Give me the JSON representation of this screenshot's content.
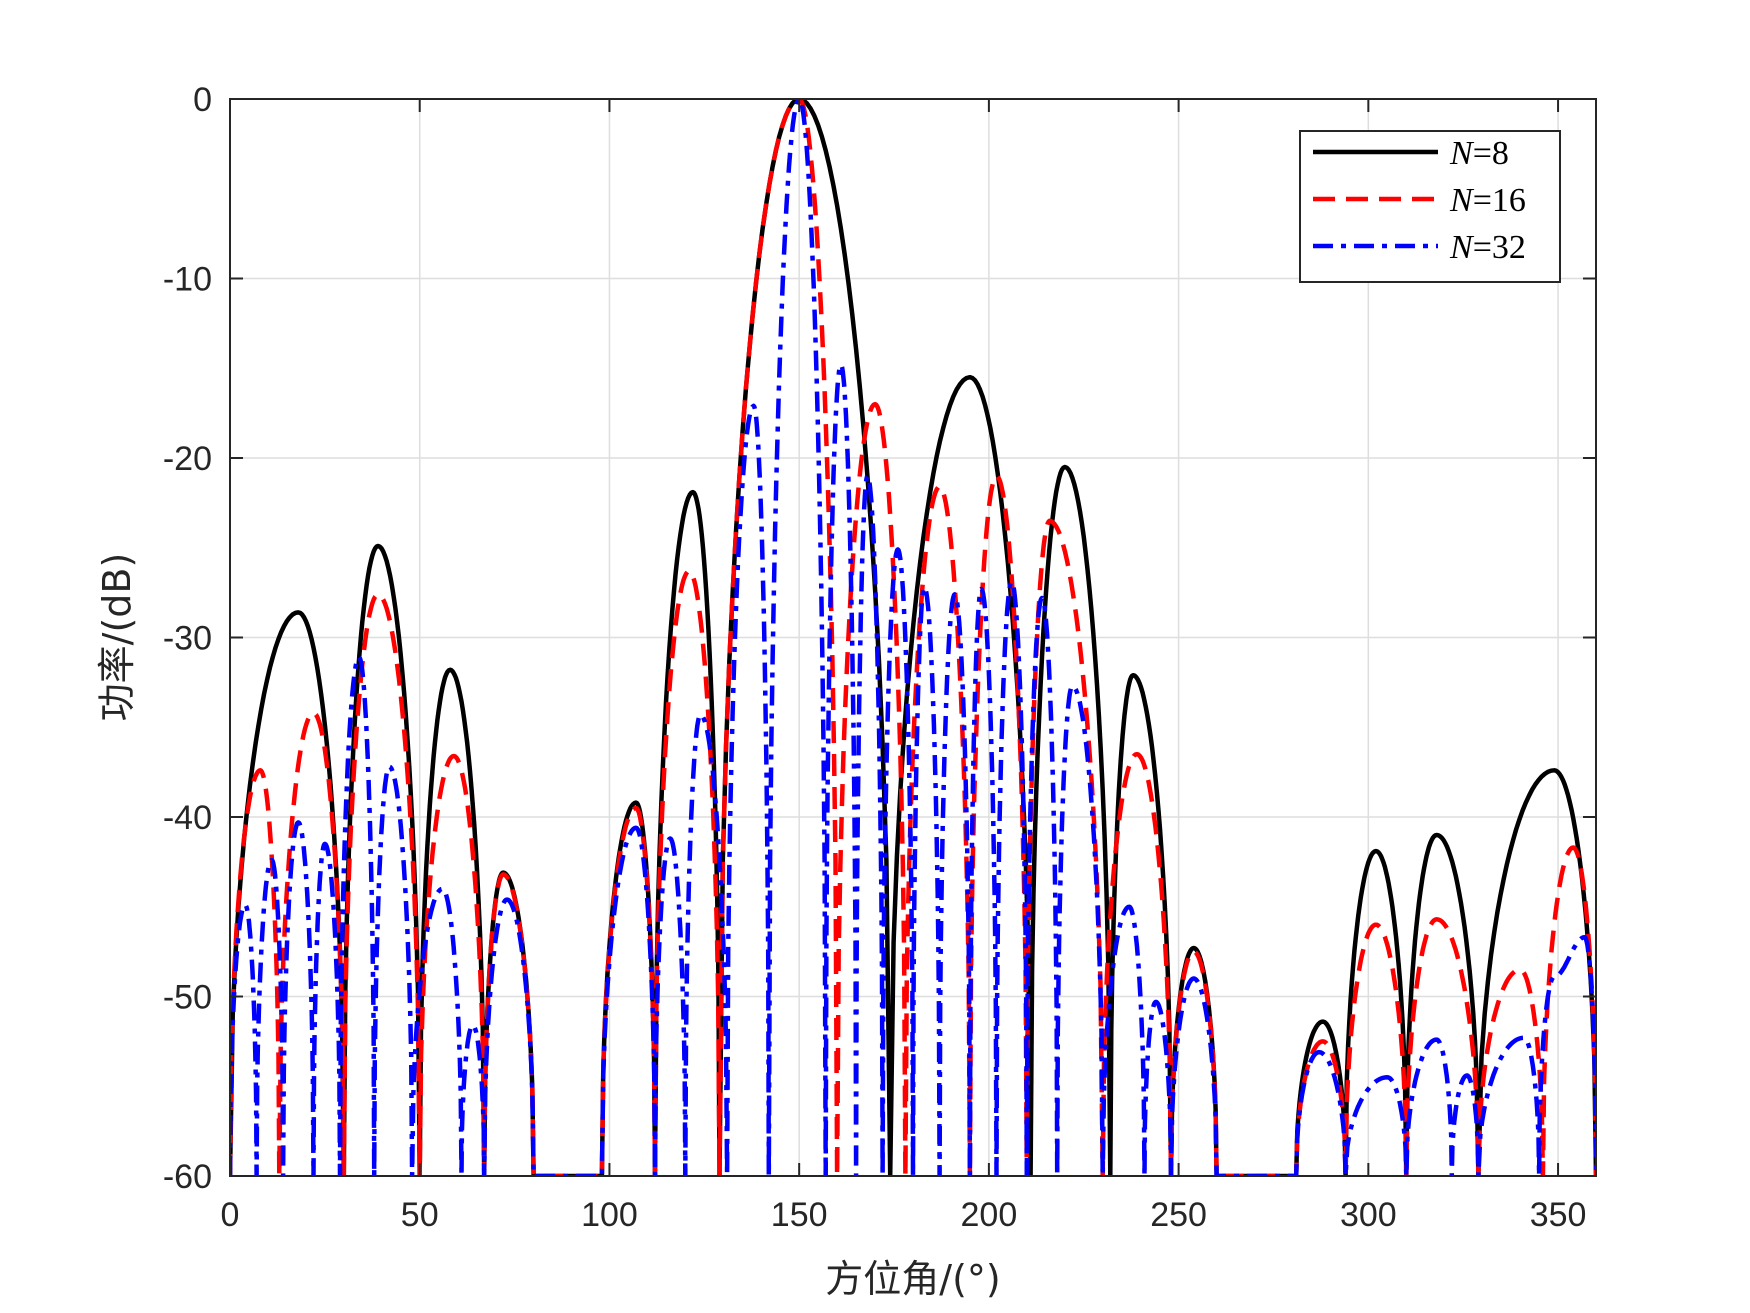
{
  "chart_data": {
    "type": "line",
    "xlabel": "方位角/(°)",
    "ylabel": "功率/(dB)",
    "xlim": [
      0,
      360
    ],
    "ylim": [
      -60,
      0
    ],
    "xticks": [
      "0",
      "50",
      "100",
      "150",
      "200",
      "250",
      "300",
      "350"
    ],
    "yticks": [
      "0",
      "-10",
      "-20",
      "-30",
      "-40",
      "-50",
      "-60"
    ],
    "grid": true,
    "legend_position": "top-right",
    "series": [
      {
        "name": "N=8",
        "name_var": "N",
        "name_eq": "=8",
        "color": "#000000",
        "style": "solid",
        "peaks": [
          [
            18,
            -28.6
          ],
          [
            39,
            -24.9
          ],
          [
            58,
            -31.8
          ],
          [
            72,
            -43.1
          ],
          [
            107,
            -39.2
          ],
          [
            122,
            -21.9
          ],
          [
            150,
            0
          ],
          [
            195,
            -15.5
          ],
          [
            220,
            -20.5
          ],
          [
            238,
            -32.1
          ],
          [
            254,
            -47.3
          ],
          [
            288,
            -51.4
          ],
          [
            302,
            -41.9
          ],
          [
            318,
            -41
          ],
          [
            349,
            -37.4
          ]
        ],
        "nulls": [
          [
            0,
            -60
          ],
          [
            30,
            -60
          ],
          [
            50,
            -60
          ],
          [
            67,
            -60
          ],
          [
            80,
            -60
          ],
          [
            98,
            -60
          ],
          [
            112,
            -60
          ],
          [
            129,
            -60
          ],
          [
            174,
            -60
          ],
          [
            211,
            -60
          ],
          [
            232,
            -60
          ],
          [
            248,
            -60
          ],
          [
            260,
            -60
          ],
          [
            281,
            -60
          ],
          [
            294,
            -60
          ],
          [
            310,
            -60
          ],
          [
            329,
            -60
          ],
          [
            360,
            -60
          ]
        ]
      },
      {
        "name": "N=16",
        "name_var": "N",
        "name_eq": "=16",
        "color": "#ff0000",
        "style": "dashed",
        "peaks": [
          [
            8,
            -37.4
          ],
          [
            22,
            -34.2
          ],
          [
            39,
            -27.6
          ],
          [
            59,
            -36.6
          ],
          [
            72,
            -43.2
          ],
          [
            107,
            -39.5
          ],
          [
            121,
            -26.3
          ],
          [
            150,
            0
          ],
          [
            170,
            -17
          ],
          [
            187,
            -21.6
          ],
          [
            202,
            -21
          ],
          [
            216,
            -23.5
          ],
          [
            239,
            -36.5
          ],
          [
            254,
            -47.5
          ],
          [
            288,
            -52.5
          ],
          [
            302,
            -46
          ],
          [
            318,
            -45.7
          ],
          [
            340,
            -48.5
          ],
          [
            354,
            -41.7
          ]
        ],
        "nulls": [
          [
            0,
            -60
          ],
          [
            13,
            -60
          ],
          [
            30,
            -60
          ],
          [
            50,
            -60
          ],
          [
            67,
            -60
          ],
          [
            80,
            -60
          ],
          [
            98,
            -60
          ],
          [
            112,
            -60
          ],
          [
            129,
            -60
          ],
          [
            160,
            -60
          ],
          [
            178,
            -60
          ],
          [
            195,
            -60
          ],
          [
            210,
            -60
          ],
          [
            230,
            -60
          ],
          [
            248,
            -60
          ],
          [
            260,
            -60
          ],
          [
            281,
            -60
          ],
          [
            294,
            -60
          ],
          [
            310,
            -60
          ],
          [
            329,
            -60
          ],
          [
            346,
            -60
          ],
          [
            360,
            -60
          ]
        ]
      },
      {
        "name": "N=32",
        "name_var": "N",
        "name_eq": "=32",
        "color": "#0000ff",
        "style": "dashdot",
        "peaks": [
          [
            4,
            -44.9
          ],
          [
            11,
            -42.4
          ],
          [
            18,
            -40.3
          ],
          [
            25,
            -41.5
          ],
          [
            34,
            -31.1
          ],
          [
            42,
            -37.2
          ],
          [
            56,
            -44
          ],
          [
            64,
            -51.6
          ],
          [
            73,
            -44.6
          ],
          [
            107,
            -40.6
          ],
          [
            116,
            -41.2
          ],
          [
            124,
            -34.3
          ],
          [
            138,
            -17.1
          ],
          [
            150,
            0
          ],
          [
            161,
            -14.8
          ],
          [
            168,
            -21
          ],
          [
            176,
            -25.1
          ],
          [
            183,
            -27.2
          ],
          [
            191,
            -27.6
          ],
          [
            198,
            -27.3
          ],
          [
            206,
            -26.9
          ],
          [
            214,
            -27.8
          ],
          [
            222,
            -32.7
          ],
          [
            237,
            -45
          ],
          [
            244,
            -50.3
          ],
          [
            254,
            -49
          ],
          [
            287,
            -53.1
          ],
          [
            305,
            -54.5
          ],
          [
            318,
            -52.4
          ],
          [
            326,
            -54.4
          ],
          [
            341,
            -52.3
          ],
          [
            349,
            -48.9
          ],
          [
            357,
            -46.7
          ]
        ],
        "nulls": [
          [
            0,
            -60
          ],
          [
            7,
            -60
          ],
          [
            14,
            -60
          ],
          [
            22,
            -60
          ],
          [
            29,
            -60
          ],
          [
            38,
            -60
          ],
          [
            48,
            -60
          ],
          [
            61,
            -60
          ],
          [
            67,
            -60
          ],
          [
            80,
            -60
          ],
          [
            98,
            -60
          ],
          [
            112,
            -60
          ],
          [
            120,
            -60
          ],
          [
            131,
            -60
          ],
          [
            142,
            -60
          ],
          [
            157,
            -60
          ],
          [
            165,
            -60
          ],
          [
            172,
            -60
          ],
          [
            180,
            -60
          ],
          [
            187,
            -60
          ],
          [
            195,
            -60
          ],
          [
            202,
            -60
          ],
          [
            210,
            -60
          ],
          [
            218,
            -60
          ],
          [
            230,
            -60
          ],
          [
            241,
            -60
          ],
          [
            248,
            -60
          ],
          [
            260,
            -60
          ],
          [
            281,
            -60
          ],
          [
            294,
            -60
          ],
          [
            310,
            -60
          ],
          [
            322,
            -60
          ],
          [
            329,
            -60
          ],
          [
            345,
            -60
          ],
          [
            360,
            -60
          ]
        ]
      }
    ]
  }
}
